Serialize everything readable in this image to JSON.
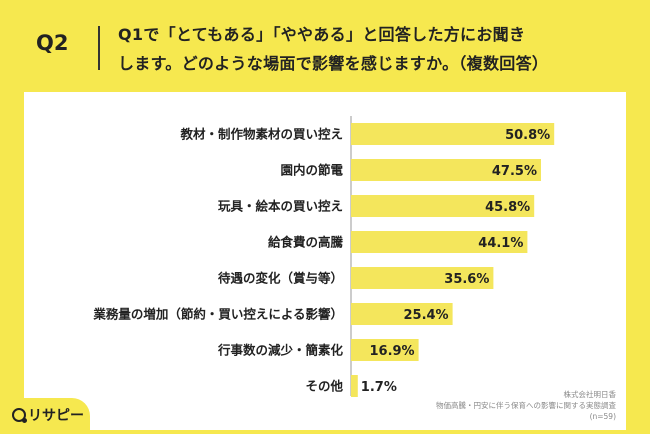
{
  "header": {
    "question_number": "Q2",
    "question_line1": "Q1で「とてもある」「ややある」と回答した方にお聞き",
    "question_line2": "します。どのような場面で影響を感じますか。（複数回答）"
  },
  "colors": {
    "background": "#f6e84f",
    "bar": "#f4e65c",
    "panel": "#ffffff"
  },
  "chart_data": {
    "type": "bar",
    "orientation": "horizontal",
    "categories": [
      "教材・制作物素材の買い控え",
      "園内の節電",
      "玩具・絵本の買い控え",
      "給食費の高騰",
      "待遇の変化（賞与等）",
      "業務量の増加（節約・買い控えによる影響）",
      "行事数の減少・簡素化",
      "その他"
    ],
    "values": [
      50.8,
      47.5,
      45.8,
      44.1,
      35.6,
      25.4,
      16.9,
      1.7
    ],
    "value_labels": [
      "50.8%",
      "47.5%",
      "45.8%",
      "44.1%",
      "35.6%",
      "25.4%",
      "16.9%",
      "1.7%"
    ],
    "unit": "%",
    "xlim": [
      0,
      100
    ],
    "grid": false
  },
  "source": {
    "line1": "株式会社明日香",
    "line2": "物価高騰・円安に伴う保育への影響に関する実態調査",
    "line3": "(n=59)"
  },
  "logo": {
    "text": "リサピー",
    "icon": "search-icon"
  }
}
